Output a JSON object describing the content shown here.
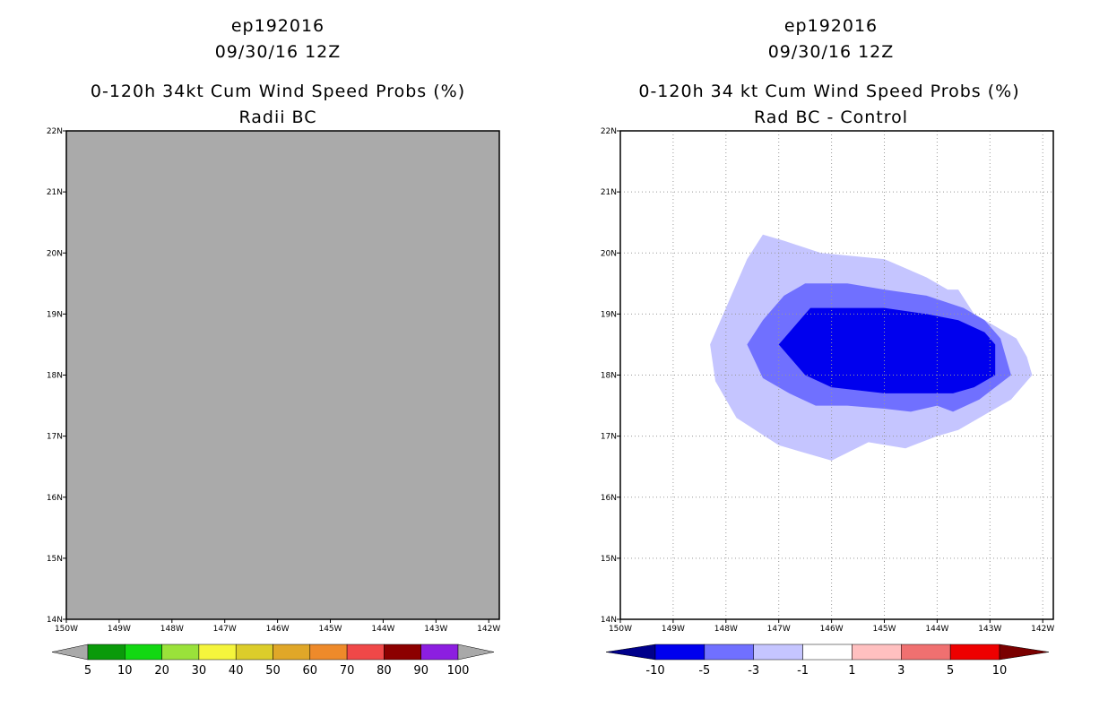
{
  "chart_data": [
    {
      "type": "heatmap",
      "storm_id": "ep192016",
      "date": "09/30/16 12Z",
      "title": "0-120h 34kt Cum Wind Speed Probs (%)",
      "subtitle": "Radii BC",
      "x_tick_labels": [
        "150W",
        "149W",
        "148W",
        "147W",
        "146W",
        "145W",
        "144W",
        "143W",
        "142W"
      ],
      "y_tick_labels": [
        "14N",
        "15N",
        "16N",
        "17N",
        "18N",
        "19N",
        "20N",
        "21N",
        "22N"
      ],
      "xlim": [
        -150,
        -141.8
      ],
      "ylim": [
        14,
        22
      ],
      "field_note": "entire domain below 5% (uniform grey fill)",
      "colorbar": {
        "levels": [
          "5",
          "10",
          "20",
          "30",
          "40",
          "50",
          "60",
          "70",
          "80",
          "90",
          "100"
        ],
        "colors": [
          "#a9a9a9",
          "#0a9a0a",
          "#12d812",
          "#9ae23a",
          "#f5f53c",
          "#dccd2a",
          "#e0a728",
          "#ee8a2a",
          "#f04848",
          "#8c0000",
          "#8c1ee0",
          "#a9a9a9"
        ]
      },
      "background_color": "#aaaaaa"
    },
    {
      "type": "heatmap",
      "storm_id": "ep192016",
      "date": "09/30/16 12Z",
      "title": "0-120h 34 kt Cum Wind Speed Probs (%)",
      "subtitle": "Rad BC - Control",
      "x_tick_labels": [
        "150W",
        "149W",
        "148W",
        "147W",
        "146W",
        "145W",
        "144W",
        "143W",
        "142W"
      ],
      "y_tick_labels": [
        "14N",
        "15N",
        "16N",
        "17N",
        "18N",
        "19N",
        "20N",
        "21N",
        "22N"
      ],
      "xlim": [
        -150,
        -141.8
      ],
      "ylim": [
        14,
        22
      ],
      "grid": true,
      "contours": [
        {
          "level": "-1",
          "color": "#c5c5ff",
          "points": [
            [
              -147.3,
              20.3
            ],
            [
              -146.9,
              20.2
            ],
            [
              -146.2,
              20.0
            ],
            [
              -145.0,
              19.9
            ],
            [
              -144.2,
              19.6
            ],
            [
              -143.8,
              19.4
            ],
            [
              -143.6,
              19.4
            ],
            [
              -143.3,
              19.0
            ],
            [
              -142.9,
              18.8
            ],
            [
              -142.5,
              18.6
            ],
            [
              -142.3,
              18.3
            ],
            [
              -142.2,
              18.0
            ],
            [
              -142.6,
              17.6
            ],
            [
              -143.0,
              17.4
            ],
            [
              -143.6,
              17.1
            ],
            [
              -144.0,
              17.0
            ],
            [
              -144.3,
              16.9
            ],
            [
              -144.6,
              16.8
            ],
            [
              -145.3,
              16.9
            ],
            [
              -146.0,
              16.6
            ],
            [
              -147.0,
              16.85
            ],
            [
              -147.8,
              17.3
            ],
            [
              -148.2,
              17.9
            ],
            [
              -148.3,
              18.5
            ],
            [
              -148.0,
              19.1
            ],
            [
              -147.6,
              19.9
            ]
          ]
        },
        {
          "level": "-3",
          "color": "#7070ff",
          "points": [
            [
              -146.5,
              19.5
            ],
            [
              -145.7,
              19.5
            ],
            [
              -145.0,
              19.4
            ],
            [
              -144.2,
              19.3
            ],
            [
              -143.5,
              19.1
            ],
            [
              -143.1,
              18.9
            ],
            [
              -142.8,
              18.6
            ],
            [
              -142.6,
              18.0
            ],
            [
              -143.2,
              17.6
            ],
            [
              -143.7,
              17.4
            ],
            [
              -144.0,
              17.5
            ],
            [
              -144.5,
              17.4
            ],
            [
              -145.0,
              17.45
            ],
            [
              -145.7,
              17.5
            ],
            [
              -146.3,
              17.5
            ],
            [
              -146.8,
              17.7
            ],
            [
              -147.3,
              17.95
            ],
            [
              -147.6,
              18.5
            ],
            [
              -147.3,
              18.9
            ],
            [
              -146.9,
              19.3
            ]
          ]
        },
        {
          "level": "-5",
          "color": "#0000ee",
          "points": [
            [
              -146.4,
              19.1
            ],
            [
              -145.0,
              19.1
            ],
            [
              -144.2,
              19.0
            ],
            [
              -143.6,
              18.9
            ],
            [
              -143.1,
              18.7
            ],
            [
              -142.9,
              18.5
            ],
            [
              -142.9,
              18.0
            ],
            [
              -143.3,
              17.8
            ],
            [
              -143.7,
              17.7
            ],
            [
              -144.2,
              17.7
            ],
            [
              -145.0,
              17.7
            ],
            [
              -145.5,
              17.75
            ],
            [
              -146.0,
              17.8
            ],
            [
              -146.5,
              18.0
            ],
            [
              -147.0,
              18.5
            ]
          ]
        }
      ],
      "colorbar": {
        "levels": [
          "-10",
          "-5",
          "-3",
          "-1",
          "1",
          "3",
          "5",
          "10"
        ],
        "colors": [
          "#00008b",
          "#0000ee",
          "#7070ff",
          "#c5c5ff",
          "#ffffff",
          "#ffc0c0",
          "#f07070",
          "#ee0000",
          "#7a0000"
        ]
      },
      "background_color": "#ffffff"
    }
  ]
}
